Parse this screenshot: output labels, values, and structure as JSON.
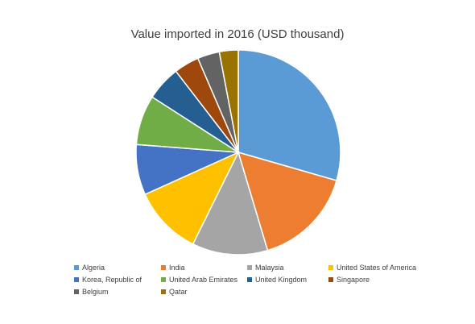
{
  "chart_data": {
    "type": "pie",
    "title": "Value imported in 2016 (USD thousand)",
    "slices": [
      {
        "label": "Algeria",
        "value": 29.6,
        "color": "#5B9BD5"
      },
      {
        "label": "India",
        "value": 16.0,
        "color": "#ED7D31"
      },
      {
        "label": "Malaysia",
        "value": 12.0,
        "color": "#A5A5A5"
      },
      {
        "label": "United States of America",
        "value": 11.0,
        "color": "#FFC000"
      },
      {
        "label": "Korea, Republic of",
        "value": 8.0,
        "color": "#4472C4"
      },
      {
        "label": "United Arab Emirates",
        "value": 7.9,
        "color": "#70AD47"
      },
      {
        "label": "United Kingdom",
        "value": 5.5,
        "color": "#255E91"
      },
      {
        "label": "Singapore",
        "value": 4.0,
        "color": "#9E480E"
      },
      {
        "label": "Belgium",
        "value": 3.5,
        "color": "#636363"
      },
      {
        "label": "Qatar",
        "value": 3.0,
        "color": "#997300"
      }
    ],
    "legend_placement": "bottom"
  }
}
